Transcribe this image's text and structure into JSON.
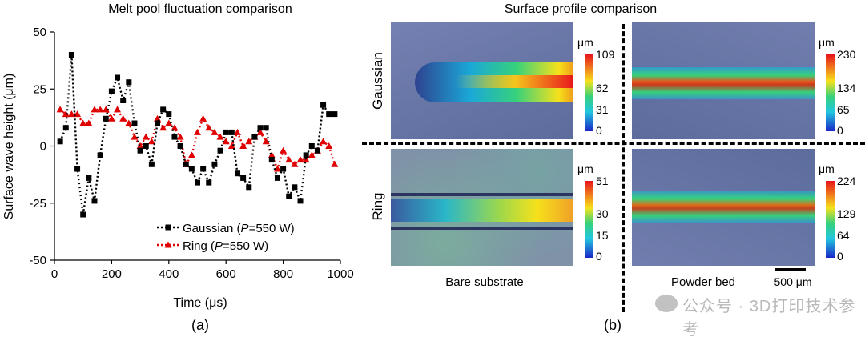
{
  "chart_data": [
    {
      "type": "line",
      "title": "Melt pool fluctuation comparison",
      "xlabel": "Time (μs)",
      "ylabel": "Surface wave height (μm)",
      "xlim": [
        0,
        1000
      ],
      "ylim": [
        -50,
        50
      ],
      "xticks": [
        "0",
        "200",
        "400",
        "600",
        "800",
        "1000"
      ],
      "yticks": [
        "50",
        "25",
        "0",
        "-25",
        "-50"
      ],
      "caption": "(a)",
      "series": [
        {
          "name": "Gaussian",
          "legend_prefix": "Gaussian (",
          "legend_italic": "P",
          "legend_suffix": "=550 W)",
          "color": "#000000",
          "marker": "square",
          "x": [
            20,
            40,
            60,
            80,
            100,
            120,
            140,
            160,
            180,
            200,
            220,
            240,
            260,
            280,
            300,
            320,
            340,
            360,
            380,
            400,
            420,
            440,
            460,
            480,
            500,
            520,
            540,
            560,
            580,
            600,
            620,
            640,
            660,
            680,
            700,
            720,
            740,
            760,
            780,
            800,
            820,
            840,
            860,
            880,
            900,
            920,
            940,
            960,
            980
          ],
          "y": [
            2,
            8,
            40,
            -10,
            -30,
            -14,
            -24,
            -4,
            12,
            24,
            30,
            20,
            28,
            10,
            -2,
            0,
            -8,
            10,
            16,
            14,
            4,
            0,
            -8,
            -10,
            -16,
            -10,
            -16,
            -8,
            -2,
            6,
            6,
            -12,
            -14,
            -18,
            4,
            8,
            8,
            -6,
            -14,
            -10,
            -22,
            -18,
            -24,
            -4,
            0,
            -2,
            18,
            14,
            14
          ]
        },
        {
          "name": "Ring",
          "legend_prefix": "Ring (",
          "legend_italic": "P",
          "legend_suffix": "=550 W)",
          "color": "#e00000",
          "marker": "triangle",
          "x": [
            20,
            40,
            60,
            80,
            100,
            120,
            140,
            160,
            180,
            200,
            220,
            240,
            260,
            280,
            300,
            320,
            340,
            360,
            380,
            400,
            420,
            440,
            460,
            480,
            500,
            520,
            540,
            560,
            580,
            600,
            620,
            640,
            660,
            680,
            700,
            720,
            740,
            760,
            780,
            800,
            820,
            840,
            860,
            880,
            900,
            920,
            940,
            960,
            980
          ],
          "y": [
            16,
            14,
            14,
            14,
            10,
            10,
            16,
            16,
            16,
            12,
            16,
            12,
            10,
            4,
            0,
            4,
            2,
            12,
            8,
            10,
            8,
            4,
            -8,
            -4,
            6,
            12,
            8,
            6,
            4,
            2,
            0,
            6,
            0,
            2,
            4,
            6,
            2,
            -4,
            -10,
            -2,
            -6,
            -8,
            -6,
            -6,
            -4,
            -2,
            2,
            0,
            -8
          ]
        }
      ]
    },
    {
      "type": "heatmap",
      "title": "Surface profile comparison",
      "caption": "(b)",
      "rows": [
        "Gaussian",
        "Ring"
      ],
      "columns": [
        "Bare substrate",
        "Powder bed"
      ],
      "unit": "μm",
      "scale_bar": "500 μm",
      "panels": [
        {
          "row": "Gaussian",
          "column": "Bare substrate",
          "ticks": [
            "109",
            "62",
            "31",
            "0"
          ]
        },
        {
          "row": "Gaussian",
          "column": "Powder bed",
          "ticks": [
            "230",
            "134",
            "65",
            "0"
          ]
        },
        {
          "row": "Ring",
          "column": "Bare substrate",
          "ticks": [
            "51",
            "30",
            "15",
            "0"
          ]
        },
        {
          "row": "Ring",
          "column": "Powder bed",
          "ticks": [
            "224",
            "129",
            "64",
            "0"
          ]
        }
      ]
    }
  ],
  "watermark": "公众号 · 3D打印技术参考",
  "colors": {
    "tile_bg": "#5f6f9e",
    "jet_top": "#e8141c",
    "jet_mid": "#f6e11b",
    "jet_low": "#22c7e0",
    "jet_bottom": "#1a27c8"
  }
}
